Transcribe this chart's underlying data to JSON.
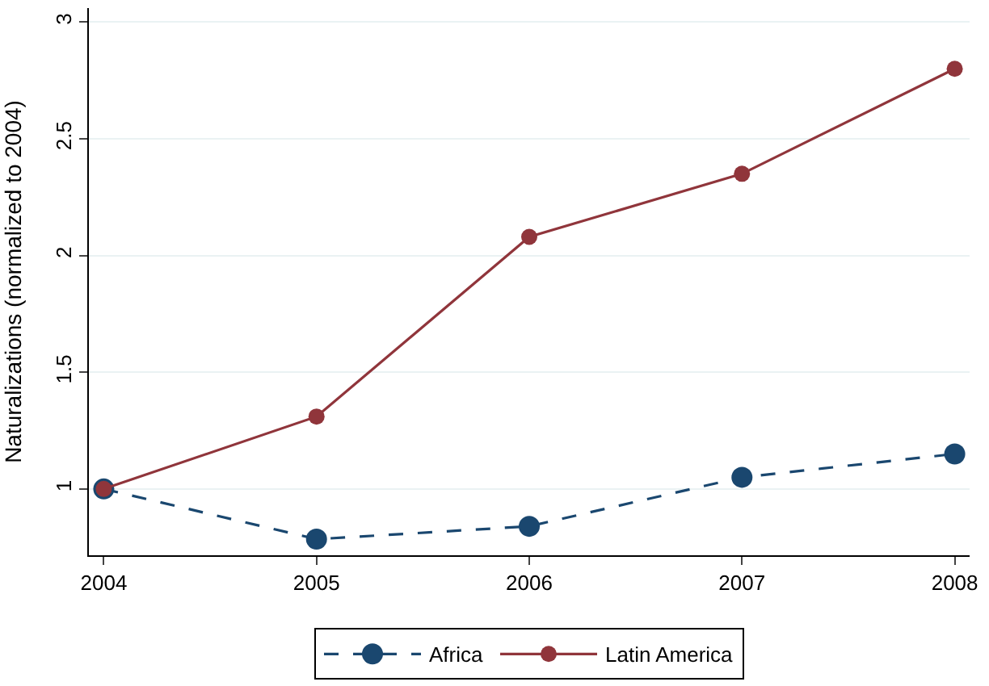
{
  "chart_data": {
    "type": "line",
    "ylabel": "Naturalizations (normalized to 2004)",
    "x": [
      2004,
      2005,
      2006,
      2007,
      2008
    ],
    "series": [
      {
        "name": "Africa",
        "color": "#1a476f",
        "values": [
          1.0,
          0.785,
          0.84,
          1.05,
          1.15
        ],
        "line_style": "dashed"
      },
      {
        "name": "Latin America",
        "color": "#90353b",
        "values": [
          1.0,
          1.31,
          2.08,
          2.35,
          2.8
        ],
        "line_style": "solid"
      }
    ],
    "xlim": [
      2003.93,
      2008.07
    ],
    "xticks": [
      2004,
      2005,
      2006,
      2007,
      2008
    ],
    "ylim": [
      0.716,
      3.06
    ],
    "yticks": [
      1,
      1.5,
      2,
      2.5,
      3
    ],
    "grid": "y",
    "legend": "bottom",
    "marker": "circle"
  }
}
